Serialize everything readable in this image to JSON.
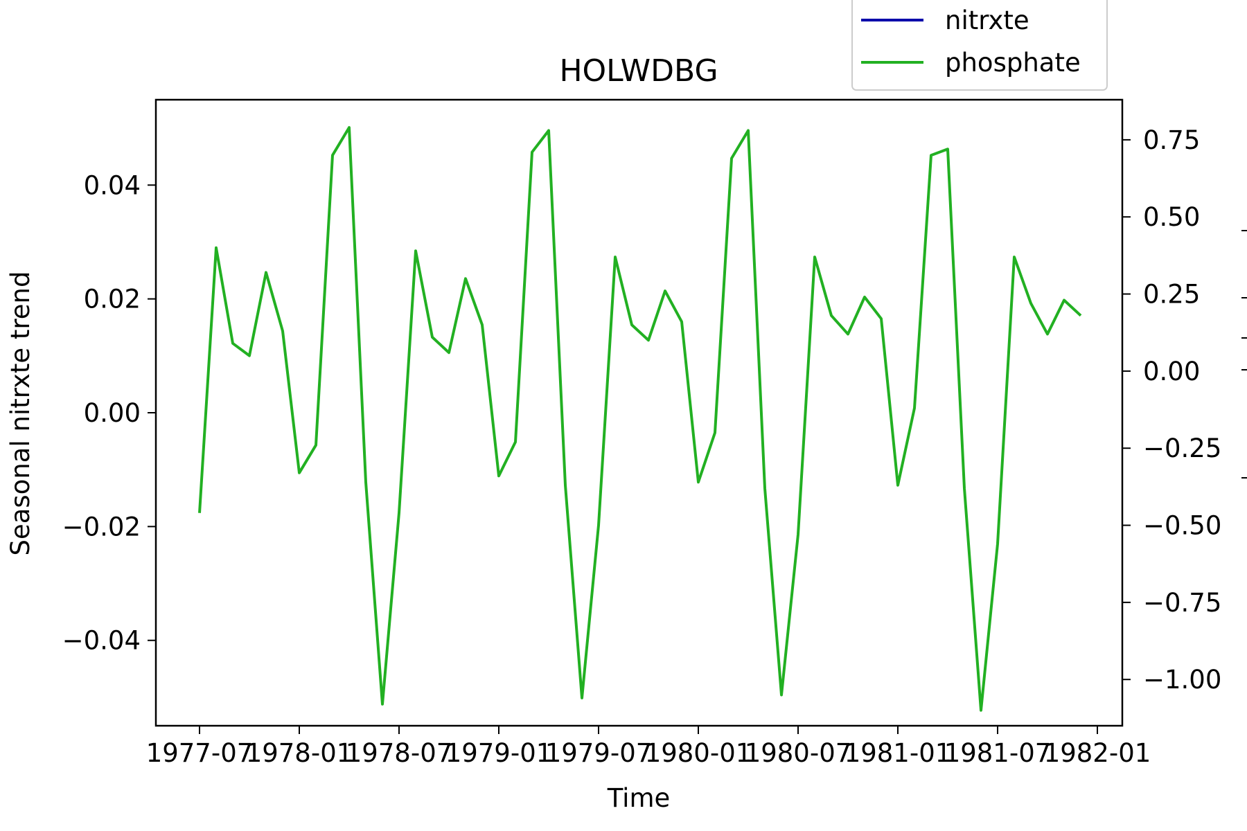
{
  "chart_data": {
    "type": "line",
    "title": "HOLWDBG",
    "xlabel": "Time",
    "ylabel": "Seasonal nitrxte trend",
    "x_tick_labels": [
      "1977-07",
      "1978-01",
      "1978-07",
      "1979-01",
      "1979-07",
      "1980-01",
      "1980-07",
      "1981-01",
      "1981-07",
      "1982-01"
    ],
    "ylim_left": [
      -0.055,
      0.055
    ],
    "y_ticks_left": [
      0.04,
      0.02,
      0.0,
      -0.02,
      -0.04
    ],
    "y_tick_labels_left": [
      "0.04",
      "0.02",
      "0.00",
      "−0.02",
      "−0.04"
    ],
    "ylim_right": [
      -1.15,
      0.88
    ],
    "y_ticks_right": [
      0.75,
      0.5,
      0.25,
      0.0,
      -0.25,
      -0.5,
      -0.75,
      -1.0
    ],
    "y_tick_labels_right": [
      "0.75",
      "0.50",
      "0.25",
      "0.00",
      "−0.25",
      "−0.50",
      "−0.75",
      "−1.00"
    ],
    "x_start": "1977-07",
    "x_step_months": 1,
    "series": [
      {
        "name": "nitrxte",
        "color": "#0000aa",
        "axis": "left",
        "values": []
      },
      {
        "name": "phosphate",
        "color": "#22b022",
        "axis": "right",
        "values": [
          -0.46,
          0.4,
          0.09,
          0.05,
          0.32,
          0.13,
          -0.33,
          -0.24,
          0.7,
          0.79,
          -0.36,
          -1.08,
          -0.46,
          0.39,
          0.11,
          0.06,
          0.3,
          0.15,
          -0.34,
          -0.23,
          0.71,
          0.78,
          -0.37,
          -1.06,
          -0.5,
          0.37,
          0.15,
          0.1,
          0.26,
          0.16,
          -0.36,
          -0.2,
          0.69,
          0.78,
          -0.38,
          -1.05,
          -0.53,
          0.37,
          0.18,
          0.12,
          0.24,
          0.17,
          -0.37,
          -0.12,
          0.7,
          0.72,
          -0.38,
          -1.1,
          -0.56,
          0.37,
          0.22,
          0.12,
          0.23,
          0.18
        ]
      }
    ],
    "legend": {
      "position": "top-right",
      "entries": [
        "nitrxte",
        "phosphate"
      ]
    }
  }
}
